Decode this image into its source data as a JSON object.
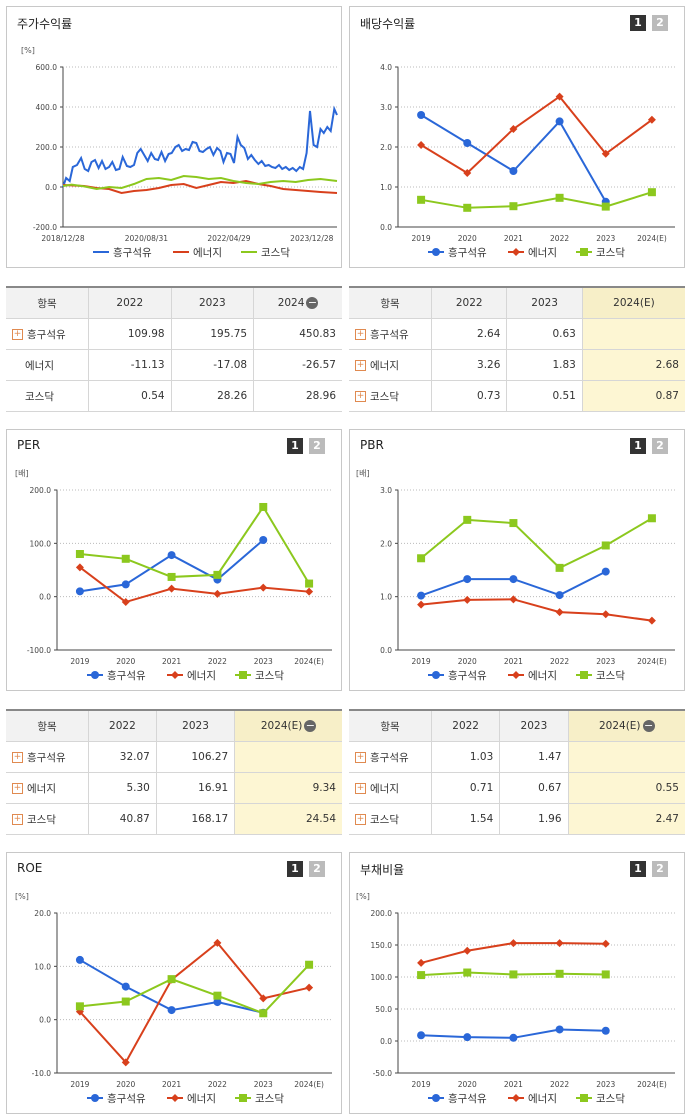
{
  "legend": [
    "흥구석유",
    "에너지",
    "코스닥"
  ],
  "colors": {
    "s0": "#2a67d8",
    "s1": "#d8401c",
    "s2": "#8cc81e"
  },
  "panels": [
    {
      "title": "주가수익률",
      "unit": "[%]",
      "buttons": []
    },
    {
      "title": "배당수익률",
      "unit": "",
      "buttons": [
        "1",
        "2"
      ]
    },
    {
      "title": "PER",
      "unit": "[배]",
      "buttons": [
        "1",
        "2"
      ]
    },
    {
      "title": "PBR",
      "unit": "[배]",
      "buttons": [
        "1",
        "2"
      ]
    },
    {
      "title": "ROE",
      "unit": "[%]",
      "buttons": [
        "1",
        "2"
      ]
    },
    {
      "title": "부채비율",
      "unit": "[%]",
      "buttons": [
        "1",
        "2"
      ]
    }
  ],
  "chart_data": [
    {
      "type": "line",
      "title": "주가수익률",
      "ylabel": "[%]",
      "ylim": [
        -200,
        600
      ],
      "y_ticks": [
        "600.0",
        "400.0",
        "200.0",
        "0.0",
        "-200.0"
      ],
      "x_ticks": [
        "2018/12/28",
        "2020/08/31",
        "2022/04/29",
        "2023/12/28"
      ],
      "x_range": [
        "2018/12/28",
        "2024/06/30"
      ],
      "series": [
        {
          "name": "흥구석유",
          "dates": [
            "2018/12/28",
            "2019/01/20",
            "2019/02/15",
            "2019/03/10",
            "2019/04/10",
            "2019/05/10",
            "2019/06/05",
            "2019/07/01",
            "2019/07/25",
            "2019/08/20",
            "2019/09/15",
            "2019/10/10",
            "2019/11/05",
            "2019/12/01",
            "2019/12/25",
            "2020/01/20",
            "2020/02/15",
            "2020/03/10",
            "2020/04/10",
            "2020/05/05",
            "2020/06/01",
            "2020/06/25",
            "2020/07/20",
            "2020/08/15",
            "2020/09/10",
            "2020/10/05",
            "2020/11/01",
            "2020/11/25",
            "2020/12/20",
            "2021/01/15",
            "2021/02/10",
            "2021/03/05",
            "2021/04/01",
            "2021/04/25",
            "2021/05/20",
            "2021/06/15",
            "2021/07/10",
            "2021/08/05",
            "2021/09/01",
            "2021/09/25",
            "2021/10/20",
            "2021/11/15",
            "2021/12/10",
            "2022/01/05",
            "2022/02/01",
            "2022/02/25",
            "2022/03/20",
            "2022/04/15",
            "2022/05/10",
            "2022/06/05",
            "2022/07/01",
            "2022/07/25",
            "2022/08/20",
            "2022/09/15",
            "2022/10/10",
            "2022/11/05",
            "2022/12/01",
            "2022/12/25",
            "2023/01/20",
            "2023/02/15",
            "2023/03/10",
            "2023/04/05",
            "2023/05/01",
            "2023/05/25",
            "2023/06/20",
            "2023/07/15",
            "2023/08/10",
            "2023/09/05",
            "2023/10/01",
            "2023/10/25",
            "2023/11/20",
            "2023/12/15",
            "2024/01/10",
            "2024/02/05",
            "2024/03/01",
            "2024/03/25",
            "2024/04/20",
            "2024/05/15",
            "2024/06/10",
            "2024/06/30"
          ],
          "values": [
            0,
            45,
            30,
            100,
            110,
            145,
            90,
            80,
            125,
            135,
            95,
            130,
            90,
            100,
            125,
            85,
            90,
            150,
            105,
            100,
            110,
            170,
            190,
            160,
            130,
            170,
            140,
            135,
            175,
            130,
            165,
            170,
            200,
            210,
            180,
            190,
            185,
            225,
            220,
            180,
            175,
            190,
            200,
            160,
            195,
            180,
            125,
            170,
            165,
            120,
            250,
            210,
            195,
            140,
            160,
            135,
            115,
            130,
            105,
            110,
            100,
            95,
            110,
            90,
            100,
            85,
            95,
            80,
            100,
            90,
            170,
            380,
            210,
            200,
            290,
            270,
            300,
            280,
            390,
            360
          ]
        },
        {
          "name": "에너지",
          "dates": [
            "2018/12/28",
            "2019/03/01",
            "2019/06/01",
            "2019/09/01",
            "2019/12/01",
            "2020/03/01",
            "2020/06/01",
            "2020/09/01",
            "2020/12/01",
            "2021/03/01",
            "2021/06/01",
            "2021/09/01",
            "2021/12/01",
            "2022/03/01",
            "2022/06/01",
            "2022/09/01",
            "2022/12/01",
            "2023/03/01",
            "2023/06/01",
            "2023/09/01",
            "2023/12/01",
            "2024/03/01",
            "2024/06/30"
          ],
          "values": [
            10,
            8,
            5,
            -5,
            -10,
            -30,
            -20,
            -15,
            -5,
            10,
            15,
            -5,
            10,
            25,
            20,
            30,
            15,
            5,
            -10,
            -15,
            -20,
            -25,
            -30
          ]
        },
        {
          "name": "코스닥",
          "dates": [
            "2018/12/28",
            "2019/03/01",
            "2019/06/01",
            "2019/09/01",
            "2019/12/01",
            "2020/03/01",
            "2020/06/01",
            "2020/09/01",
            "2020/12/01",
            "2021/03/01",
            "2021/06/01",
            "2021/09/01",
            "2021/12/01",
            "2022/03/01",
            "2022/06/01",
            "2022/09/01",
            "2022/12/01",
            "2023/03/01",
            "2023/06/01",
            "2023/09/01",
            "2023/12/01",
            "2024/03/01",
            "2024/06/30"
          ],
          "values": [
            5,
            12,
            3,
            -10,
            0,
            -5,
            15,
            40,
            45,
            35,
            55,
            50,
            40,
            45,
            30,
            20,
            15,
            25,
            30,
            25,
            35,
            40,
            30
          ]
        }
      ]
    },
    {
      "type": "line",
      "title": "배당수익률",
      "ylim": [
        0,
        4
      ],
      "y_ticks": [
        "4.0",
        "3.0",
        "2.0",
        "1.0",
        "0.0"
      ],
      "categories": [
        "2019",
        "2020",
        "2021",
        "2022",
        "2023",
        "2024(E)"
      ],
      "series": [
        {
          "name": "흥구석유",
          "values": [
            2.8,
            2.1,
            1.4,
            2.64,
            0.63,
            null
          ]
        },
        {
          "name": "에너지",
          "values": [
            2.05,
            1.35,
            2.45,
            3.26,
            1.83,
            2.68
          ]
        },
        {
          "name": "코스닥",
          "values": [
            0.68,
            0.48,
            0.52,
            0.73,
            0.51,
            0.87
          ]
        }
      ]
    },
    {
      "type": "line",
      "title": "PER",
      "ylabel": "[배]",
      "ylim": [
        -100,
        200
      ],
      "y_ticks": [
        "200.0",
        "100.0",
        "0.0",
        "-100.0"
      ],
      "categories": [
        "2019",
        "2020",
        "2021",
        "2022",
        "2023",
        "2024(E)"
      ],
      "series": [
        {
          "name": "흥구석유",
          "values": [
            10,
            23,
            78,
            32.07,
            106.27,
            null
          ]
        },
        {
          "name": "에너지",
          "values": [
            55,
            -10,
            15,
            5.3,
            16.91,
            9.34
          ]
        },
        {
          "name": "코스닥",
          "values": [
            80,
            71,
            37,
            40.87,
            168.17,
            24.54
          ]
        }
      ]
    },
    {
      "type": "line",
      "title": "PBR",
      "ylabel": "[배]",
      "ylim": [
        0,
        3
      ],
      "y_ticks": [
        "3.0",
        "2.0",
        "1.0",
        "0.0"
      ],
      "categories": [
        "2019",
        "2020",
        "2021",
        "2022",
        "2023",
        "2024(E)"
      ],
      "series": [
        {
          "name": "흥구석유",
          "values": [
            1.02,
            1.33,
            1.33,
            1.03,
            1.47,
            null
          ]
        },
        {
          "name": "에너지",
          "values": [
            0.85,
            0.94,
            0.95,
            0.71,
            0.67,
            0.55
          ]
        },
        {
          "name": "코스닥",
          "values": [
            1.72,
            2.44,
            2.38,
            1.54,
            1.96,
            2.47
          ]
        }
      ]
    },
    {
      "type": "line",
      "title": "ROE",
      "ylabel": "[%]",
      "ylim": [
        -10,
        20
      ],
      "y_ticks": [
        "20.0",
        "10.0",
        "0.0",
        "-10.0"
      ],
      "categories": [
        "2019",
        "2020",
        "2021",
        "2022",
        "2023",
        "2024(E)"
      ],
      "series": [
        {
          "name": "흥구석유",
          "values": [
            11.2,
            6.2,
            1.8,
            3.3,
            1.3,
            null
          ]
        },
        {
          "name": "에너지",
          "values": [
            1.5,
            -8,
            7.5,
            14.4,
            4,
            6
          ]
        },
        {
          "name": "코스닥",
          "values": [
            2.5,
            3.4,
            7.6,
            4.5,
            1.2,
            10.3
          ]
        }
      ]
    },
    {
      "type": "line",
      "title": "부채비율",
      "ylabel": "[%]",
      "ylim": [
        -50,
        200
      ],
      "y_ticks": [
        "200.0",
        "150.0",
        "100.0",
        "50.0",
        "0.0",
        "-50.0"
      ],
      "categories": [
        "2019",
        "2020",
        "2021",
        "2022",
        "2023",
        "2024(E)"
      ],
      "series": [
        {
          "name": "흥구석유",
          "values": [
            9,
            6,
            5,
            18,
            16,
            null
          ]
        },
        {
          "name": "에너지",
          "values": [
            122,
            141,
            153,
            153,
            152,
            null
          ]
        },
        {
          "name": "코스닥",
          "values": [
            103,
            107,
            104,
            105,
            104,
            null
          ]
        }
      ]
    }
  ],
  "tables": [
    {
      "header": [
        "항목",
        "2022",
        "2023",
        "2024"
      ],
      "has_minus": true,
      "highlight_last": false,
      "rows": [
        {
          "name": "흥구석유",
          "plus": true,
          "cells": [
            "109.98",
            "195.75",
            "450.83"
          ]
        },
        {
          "name": "에너지",
          "plus": false,
          "cells": [
            "-11.13",
            "-17.08",
            "-26.57"
          ]
        },
        {
          "name": "코스닥",
          "plus": false,
          "cells": [
            "0.54",
            "28.26",
            "28.96"
          ]
        }
      ]
    },
    {
      "header": [
        "항목",
        "2022",
        "2023",
        "2024(E)"
      ],
      "has_minus": false,
      "highlight_last": true,
      "rows": [
        {
          "name": "흥구석유",
          "plus": true,
          "cells": [
            "2.64",
            "0.63",
            ""
          ]
        },
        {
          "name": "에너지",
          "plus": true,
          "cells": [
            "3.26",
            "1.83",
            "2.68"
          ]
        },
        {
          "name": "코스닥",
          "plus": true,
          "cells": [
            "0.73",
            "0.51",
            "0.87"
          ]
        }
      ]
    },
    {
      "header": [
        "항목",
        "2022",
        "2023",
        "2024(E)"
      ],
      "has_minus": true,
      "highlight_last": true,
      "rows": [
        {
          "name": "흥구석유",
          "plus": true,
          "cells": [
            "32.07",
            "106.27",
            ""
          ]
        },
        {
          "name": "에너지",
          "plus": true,
          "cells": [
            "5.30",
            "16.91",
            "9.34"
          ]
        },
        {
          "name": "코스닥",
          "plus": true,
          "cells": [
            "40.87",
            "168.17",
            "24.54"
          ]
        }
      ]
    },
    {
      "header": [
        "항목",
        "2022",
        "2023",
        "2024(E)"
      ],
      "has_minus": true,
      "highlight_last": true,
      "rows": [
        {
          "name": "흥구석유",
          "plus": true,
          "cells": [
            "1.03",
            "1.47",
            ""
          ]
        },
        {
          "name": "에너지",
          "plus": true,
          "cells": [
            "0.71",
            "0.67",
            "0.55"
          ]
        },
        {
          "name": "코스닥",
          "plus": true,
          "cells": [
            "1.54",
            "1.96",
            "2.47"
          ]
        }
      ]
    }
  ]
}
